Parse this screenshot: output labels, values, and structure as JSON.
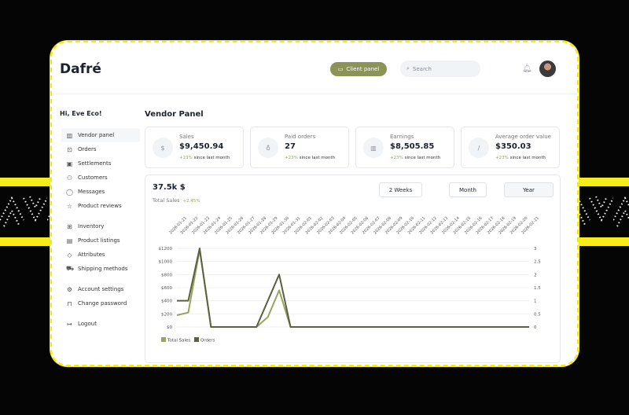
{
  "header": {
    "logo": "Dafré",
    "client_panel": "Client panel",
    "search_placeholder": "Search"
  },
  "sidebar": {
    "greeting": "Hi, Eve Eco!",
    "groups": [
      [
        {
          "label": "Vendor panel",
          "icon": "chart-icon",
          "active": true
        },
        {
          "label": "Orders",
          "icon": "box-icon"
        },
        {
          "label": "Settlements",
          "icon": "money-icon"
        },
        {
          "label": "Customers",
          "icon": "users-icon"
        },
        {
          "label": "Messages",
          "icon": "message-icon"
        },
        {
          "label": "Product reviews",
          "icon": "star-icon"
        }
      ],
      [
        {
          "label": "Inventory",
          "icon": "inventory-icon"
        },
        {
          "label": "Product listings",
          "icon": "listing-icon"
        },
        {
          "label": "Attributes",
          "icon": "tag-icon"
        },
        {
          "label": "Shipping methods",
          "icon": "truck-icon"
        }
      ],
      [
        {
          "label": "Account settings",
          "icon": "gear-icon"
        },
        {
          "label": "Change password",
          "icon": "lock-icon"
        }
      ],
      [
        {
          "label": "Logout",
          "icon": "logout-icon"
        }
      ]
    ]
  },
  "main": {
    "title": "Vendor Panel",
    "stats": [
      {
        "label": "Sales",
        "value": "$9,450.94",
        "change": "+23%",
        "since": "since last month",
        "icon": "dollar-icon"
      },
      {
        "label": "Paid orders",
        "value": "27",
        "change": "+23%",
        "since": "since last month",
        "icon": "bag-icon"
      },
      {
        "label": "Earnings",
        "value": "$8,505.85",
        "change": "+23%",
        "since": "since last month",
        "icon": "bar-chart-icon"
      },
      {
        "label": "Average order value",
        "value": "$350.03",
        "change": "+23%",
        "since": "since last month",
        "icon": "slash-icon"
      }
    ],
    "total": "37.5k $",
    "total_label": "Total Sales",
    "total_change": "+2.45%",
    "periods": [
      "2 Weeks",
      "Month",
      "Year"
    ],
    "selected_period": "Year"
  },
  "chart_data": {
    "type": "line",
    "x": [
      "2026-01-21",
      "2026-01-22",
      "2026-01-23",
      "2026-01-24",
      "2026-01-25",
      "2026-01-26",
      "2026-01-27",
      "2026-01-28",
      "2026-01-29",
      "2026-01-30",
      "2026-01-31",
      "2026-02-01",
      "2026-02-02",
      "2026-02-03",
      "2026-02-04",
      "2026-02-05",
      "2026-02-06",
      "2026-02-07",
      "2026-02-08",
      "2026-02-09",
      "2026-02-10",
      "2026-02-11",
      "2026-02-12",
      "2026-02-13",
      "2026-02-14",
      "2026-02-15",
      "2026-02-16",
      "2026-02-17",
      "2026-02-18",
      "2026-02-19",
      "2026-02-20",
      "2026-02-21"
    ],
    "series": [
      {
        "name": "Total Sales",
        "axis": "left",
        "color": "#98a35e",
        "values": [
          180,
          220,
          1180,
          0,
          0,
          0,
          0,
          0,
          150,
          560,
          0,
          0,
          0,
          0,
          0,
          0,
          0,
          0,
          0,
          0,
          0,
          0,
          0,
          0,
          0,
          0,
          0,
          0,
          0,
          0,
          0,
          0
        ]
      },
      {
        "name": "Orders",
        "axis": "right",
        "color": "#5a6140",
        "values": [
          1,
          1,
          3,
          0,
          0,
          0,
          0,
          0,
          1,
          2,
          0,
          0,
          0,
          0,
          0,
          0,
          0,
          0,
          0,
          0,
          0,
          0,
          0,
          0,
          0,
          0,
          0,
          0,
          0,
          0,
          0,
          0
        ]
      }
    ],
    "y_left": {
      "ticks": [
        "$0",
        "$200",
        "$400",
        "$600",
        "$800",
        "$1000",
        "$1200"
      ],
      "range": [
        0,
        1200
      ]
    },
    "y_right": {
      "ticks": [
        "0",
        "0.5",
        "1",
        "1.5",
        "2",
        "2.5",
        "3"
      ],
      "range": [
        0,
        3
      ]
    },
    "grid": true,
    "legend": "bottom-left"
  }
}
